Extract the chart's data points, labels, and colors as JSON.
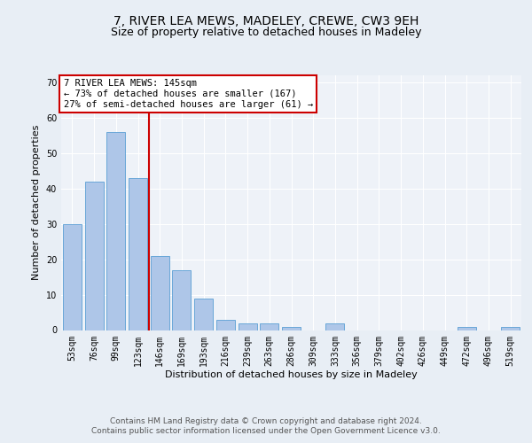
{
  "title1": "7, RIVER LEA MEWS, MADELEY, CREWE, CW3 9EH",
  "title2": "Size of property relative to detached houses in Madeley",
  "xlabel": "Distribution of detached houses by size in Madeley",
  "ylabel": "Number of detached properties",
  "categories": [
    "53sqm",
    "76sqm",
    "99sqm",
    "123sqm",
    "146sqm",
    "169sqm",
    "193sqm",
    "216sqm",
    "239sqm",
    "263sqm",
    "286sqm",
    "309sqm",
    "333sqm",
    "356sqm",
    "379sqm",
    "402sqm",
    "426sqm",
    "449sqm",
    "472sqm",
    "496sqm",
    "519sqm"
  ],
  "values": [
    30,
    42,
    56,
    43,
    21,
    17,
    9,
    3,
    2,
    2,
    1,
    0,
    2,
    0,
    0,
    0,
    0,
    0,
    1,
    0,
    1
  ],
  "bar_color": "#aec6e8",
  "bar_edge_color": "#5a9fd4",
  "annotation_line1": "7 RIVER LEA MEWS: 145sqm",
  "annotation_line2": "← 73% of detached houses are smaller (167)",
  "annotation_line3": "27% of semi-detached houses are larger (61) →",
  "annotation_box_color": "#ffffff",
  "annotation_box_edge_color": "#cc0000",
  "vline_color": "#cc0000",
  "ylim": [
    0,
    72
  ],
  "yticks": [
    0,
    10,
    20,
    30,
    40,
    50,
    60,
    70
  ],
  "bg_color": "#e8eef5",
  "plot_bg_color": "#eef2f8",
  "grid_color": "#ffffff",
  "footer1": "Contains HM Land Registry data © Crown copyright and database right 2024.",
  "footer2": "Contains public sector information licensed under the Open Government Licence v3.0.",
  "title1_fontsize": 10,
  "title2_fontsize": 9,
  "axis_label_fontsize": 8,
  "tick_fontsize": 7,
  "annotation_fontsize": 7.5,
  "footer_fontsize": 6.5
}
